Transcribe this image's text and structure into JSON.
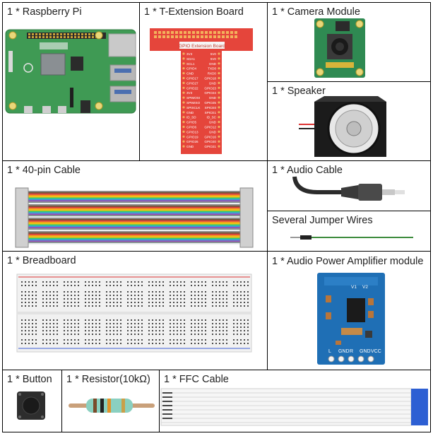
{
  "cells": {
    "raspberry_pi": "1 * Raspberry Pi",
    "t_extension": "1 * T-Extension Board",
    "camera": "1 * Camera Module",
    "speaker": "1 * Speaker",
    "pin_cable": "1 * 40-pin Cable",
    "audio_cable": "1 * Audio Cable",
    "jumper_wires": "Several Jumper Wires",
    "breadboard": "1 * Breadboard",
    "amplifier": "1 * Audio Power Amplifier module",
    "button": "1 * Button",
    "resistor": "1 * Resistor(10kΩ)",
    "ffc": "1 * FFC Cable"
  },
  "board_text": {
    "gpio_title": "GPIO Extension Board",
    "pins_left": [
      "3V3",
      "SDA1",
      "SCL1",
      "GPIO4",
      "GND",
      "GPIO17",
      "GPIO27",
      "GPIO22",
      "3V3",
      "SPIMOSI",
      "SPIMISO",
      "SPISCLK",
      "GND",
      "ID_SD",
      "GPIO5",
      "GPIO6",
      "GPIO13",
      "GPIO19",
      "GPIO26",
      "GND"
    ],
    "pins_right": [
      "5V0",
      "5V0",
      "GND",
      "TXD0",
      "RXD0",
      "GPIO18",
      "GND",
      "GPIO23",
      "GPIO24",
      "GND",
      "GPIO25",
      "SPICE0",
      "SPICE1",
      "ID_SC",
      "GND",
      "GPIO12",
      "GND",
      "GPIO16",
      "GPIO20",
      "GPIO21"
    ],
    "amp_top": [
      "V2",
      "V1"
    ],
    "amp_bottom": [
      "L",
      "GND",
      "R",
      "GND",
      "VCC"
    ]
  },
  "colors": {
    "pcb_green": "#4aa35a",
    "t_board_red": "#e8413a",
    "amp_blue": "#1e73b8",
    "ffc_blue": "#2d5fd3"
  }
}
